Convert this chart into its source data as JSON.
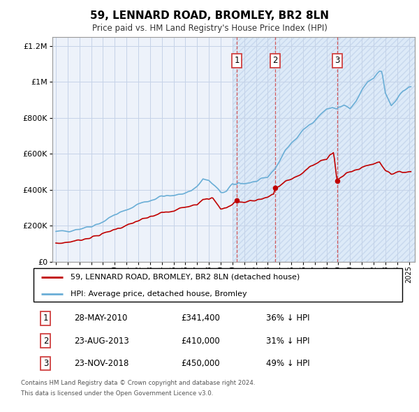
{
  "title": "59, LENNARD ROAD, BROMLEY, BR2 8LN",
  "subtitle": "Price paid vs. HM Land Registry's House Price Index (HPI)",
  "footer1": "Contains HM Land Registry data © Crown copyright and database right 2024.",
  "footer2": "This data is licensed under the Open Government Licence v3.0.",
  "legend_line1": "59, LENNARD ROAD, BROMLEY, BR2 8LN (detached house)",
  "legend_line2": "HPI: Average price, detached house, Bromley",
  "transactions": [
    {
      "num": 1,
      "date": "28-MAY-2010",
      "price": "£341,400",
      "hpi": "36% ↓ HPI",
      "year": 2010.38
    },
    {
      "num": 2,
      "date": "23-AUG-2013",
      "price": "£410,000",
      "hpi": "31% ↓ HPI",
      "year": 2013.64
    },
    {
      "num": 3,
      "date": "23-NOV-2018",
      "price": "£450,000",
      "hpi": "49% ↓ HPI",
      "year": 2018.89
    }
  ],
  "trans_prices": [
    341400,
    410000,
    450000
  ],
  "hpi_color": "#6aaed6",
  "price_color": "#c00000",
  "background_color": "#ffffff",
  "plot_bg_color": "#edf2fa",
  "shaded_bg_color": "#ddeaf8",
  "vline_color": "#d04040",
  "grid_color": "#c5d3e8",
  "ylim": [
    0,
    1250000
  ],
  "xlim_start": 1994.7,
  "xlim_end": 2025.5,
  "transaction_bg_x_start": 2010.0,
  "transaction_bg_x_end": 2025.5
}
